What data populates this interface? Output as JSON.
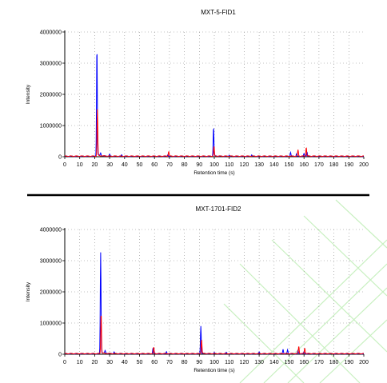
{
  "chart_data": [
    {
      "type": "line",
      "title": "MXT-5-FID1",
      "xlabel": "Retention time (s)",
      "ylabel": "Intensity",
      "xlim": [
        0,
        200
      ],
      "ylim": [
        0,
        4000000
      ],
      "xticks": [
        0,
        10,
        20,
        30,
        40,
        50,
        60,
        70,
        80,
        90,
        100,
        110,
        120,
        130,
        140,
        150,
        160,
        170,
        180,
        190,
        200
      ],
      "yticks": [
        0,
        1000000,
        2000000,
        3000000,
        4000000
      ],
      "ytick_labels": [
        "0",
        "1000000",
        "2000000",
        "3000000",
        "4000000"
      ],
      "grid": true,
      "series": [
        {
          "color": "#0000ff",
          "peaks": [
            [
              21.5,
              3500000
            ],
            [
              24,
              80000
            ],
            [
              30,
              60000
            ],
            [
              38,
              40000
            ],
            [
              69,
              60000
            ],
            [
              99.5,
              930000
            ],
            [
              110,
              40000
            ],
            [
              125,
              50000
            ],
            [
              151,
              130000
            ],
            [
              155,
              80000
            ],
            [
              160,
              80000
            ],
            [
              162,
              150000
            ]
          ]
        },
        {
          "color": "#ff0000",
          "peaks": [
            [
              21.8,
              1500000
            ],
            [
              69.5,
              150000
            ],
            [
              99.8,
              300000
            ],
            [
              156,
              200000
            ],
            [
              161.5,
              280000
            ]
          ]
        }
      ]
    },
    {
      "type": "line",
      "title": "MXT-1701-FID2",
      "xlabel": "Retention time (s)",
      "ylabel": "Intensity",
      "xlim": [
        0,
        200
      ],
      "ylim": [
        0,
        4000000
      ],
      "xticks": [
        0,
        10,
        20,
        30,
        40,
        50,
        60,
        70,
        80,
        90,
        100,
        110,
        120,
        130,
        140,
        150,
        160,
        170,
        180,
        190,
        200
      ],
      "yticks": [
        0,
        1000000,
        2000000,
        3000000,
        4000000
      ],
      "ytick_labels": [
        "0",
        "1000000",
        "2000000",
        "3000000",
        "4000000"
      ],
      "grid": true,
      "series": [
        {
          "color": "#0000ff",
          "peaks": [
            [
              24,
              3250000
            ],
            [
              27,
              80000
            ],
            [
              33,
              60000
            ],
            [
              59,
              180000
            ],
            [
              68,
              60000
            ],
            [
              91,
              880000
            ],
            [
              100,
              40000
            ],
            [
              108,
              40000
            ],
            [
              130,
              50000
            ],
            [
              146,
              140000
            ],
            [
              149,
              120000
            ],
            [
              156,
              100000
            ],
            [
              160,
              60000
            ]
          ]
        },
        {
          "color": "#ff0000",
          "peaks": [
            [
              24.3,
              1300000
            ],
            [
              59.5,
              200000
            ],
            [
              91.5,
              450000
            ],
            [
              156.5,
              230000
            ],
            [
              160.5,
              180000
            ]
          ]
        }
      ]
    }
  ],
  "colors": {
    "divider": "#000000",
    "watermark": "#c8f0c0",
    "grid": "#888888"
  }
}
